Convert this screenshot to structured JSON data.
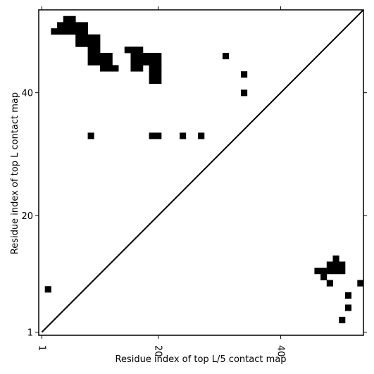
{
  "chart_data": {
    "type": "heatmap",
    "title": "",
    "xlabel": "Residue index of top L/5 contact map",
    "ylabel": "Residue index of top L contact map",
    "xlim": [
      0.5,
      53.5
    ],
    "ylim": [
      0.5,
      53.5
    ],
    "x_ticks": [
      {
        "value": 1,
        "label": "1"
      },
      {
        "value": 20,
        "label": "20"
      },
      {
        "value": 40,
        "label": "40"
      }
    ],
    "y_ticks": [
      {
        "value": 1,
        "label": "1"
      },
      {
        "value": 20,
        "label": "20"
      },
      {
        "value": 40,
        "label": "40"
      }
    ],
    "diagonal": {
      "from": [
        1,
        1
      ],
      "to": [
        53.5,
        53.5
      ],
      "color": "#000000"
    },
    "cell_color": "#000000",
    "background_color": "#ffffff",
    "upper_triangle_contacts": [
      [
        5,
        52
      ],
      [
        6,
        52
      ],
      [
        4,
        51
      ],
      [
        5,
        51
      ],
      [
        6,
        51
      ],
      [
        7,
        51
      ],
      [
        8,
        51
      ],
      [
        3,
        50
      ],
      [
        4,
        50
      ],
      [
        5,
        50
      ],
      [
        6,
        50
      ],
      [
        7,
        50
      ],
      [
        8,
        50
      ],
      [
        7,
        49
      ],
      [
        8,
        49
      ],
      [
        9,
        49
      ],
      [
        10,
        49
      ],
      [
        7,
        48
      ],
      [
        8,
        48
      ],
      [
        9,
        48
      ],
      [
        10,
        48
      ],
      [
        9,
        47
      ],
      [
        10,
        47
      ],
      [
        15,
        47
      ],
      [
        16,
        47
      ],
      [
        17,
        47
      ],
      [
        9,
        46
      ],
      [
        10,
        46
      ],
      [
        11,
        46
      ],
      [
        12,
        46
      ],
      [
        16,
        46
      ],
      [
        17,
        46
      ],
      [
        18,
        46
      ],
      [
        19,
        46
      ],
      [
        20,
        46
      ],
      [
        31,
        46
      ],
      [
        9,
        45
      ],
      [
        10,
        45
      ],
      [
        11,
        45
      ],
      [
        12,
        45
      ],
      [
        16,
        45
      ],
      [
        17,
        45
      ],
      [
        18,
        45
      ],
      [
        19,
        45
      ],
      [
        20,
        45
      ],
      [
        11,
        44
      ],
      [
        12,
        44
      ],
      [
        13,
        44
      ],
      [
        16,
        44
      ],
      [
        17,
        44
      ],
      [
        19,
        44
      ],
      [
        20,
        44
      ],
      [
        19,
        43
      ],
      [
        20,
        43
      ],
      [
        34,
        43
      ],
      [
        19,
        42
      ],
      [
        20,
        42
      ],
      [
        34,
        40
      ],
      [
        9,
        33
      ],
      [
        19,
        33
      ],
      [
        20,
        33
      ],
      [
        24,
        33
      ],
      [
        27,
        33
      ]
    ],
    "lower_triangle_contacts": [
      [
        2,
        8
      ],
      [
        50,
        3
      ],
      [
        51,
        5
      ],
      [
        51,
        7
      ],
      [
        48,
        9
      ],
      [
        47,
        10
      ],
      [
        49,
        13
      ],
      [
        46,
        11
      ],
      [
        47,
        11
      ],
      [
        48,
        11
      ],
      [
        49,
        11
      ],
      [
        48,
        12
      ],
      [
        49,
        12
      ],
      [
        50,
        12
      ],
      [
        50,
        11
      ],
      [
        53,
        9
      ]
    ]
  }
}
